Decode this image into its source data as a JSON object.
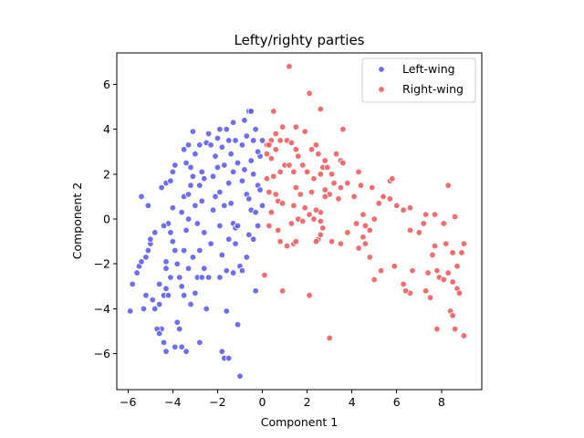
{
  "chart_data": {
    "type": "scatter",
    "title": "Lefty/righty parties",
    "xlabel": "Component 1",
    "ylabel": "Component 2",
    "xlim": [
      -6.5,
      9.8
    ],
    "ylim": [
      -7.6,
      7.4
    ],
    "xticks": [
      -6,
      -4,
      -2,
      0,
      2,
      4,
      6,
      8
    ],
    "yticks": [
      -6,
      -4,
      -2,
      0,
      2,
      4,
      6
    ],
    "xtick_labels": [
      "−6",
      "−4",
      "−2",
      "0",
      "2",
      "4",
      "6",
      "8"
    ],
    "ytick_labels": [
      "−6",
      "−4",
      "−2",
      "0",
      "2",
      "4",
      "6"
    ],
    "grid": false,
    "legend_position": "top-right",
    "series": [
      {
        "name": "Left-wing",
        "color": "#5555ee",
        "points": [
          [
            -5.9,
            -4.1
          ],
          [
            -5.8,
            -2.9
          ],
          [
            -5.6,
            -2.4
          ],
          [
            -5.5,
            -2.1
          ],
          [
            -5.4,
            -1.9
          ],
          [
            -5.2,
            -1.7
          ],
          [
            -5.1,
            -1.4
          ],
          [
            -5.0,
            -1.1
          ],
          [
            -5.3,
            -4.0
          ],
          [
            -5.2,
            -3.4
          ],
          [
            -5.4,
            1.0
          ],
          [
            -5.1,
            0.6
          ],
          [
            -5.0,
            -0.9
          ],
          [
            -4.8,
            -0.6
          ],
          [
            -4.9,
            -3.6
          ],
          [
            -4.6,
            -3.8
          ],
          [
            -4.5,
            -4.9
          ],
          [
            -4.7,
            -4.9
          ],
          [
            -4.4,
            -3.4
          ],
          [
            -4.2,
            -3.4
          ],
          [
            -4.3,
            -2.2
          ],
          [
            -4.1,
            -2.6
          ],
          [
            -4.3,
            -1.9
          ],
          [
            -4.1,
            -0.6
          ],
          [
            -4.2,
            -0.2
          ],
          [
            -4.0,
            0.5
          ],
          [
            -4.4,
            -0.3
          ],
          [
            -4.5,
            1.4
          ],
          [
            -4.3,
            1.6
          ],
          [
            -4.1,
            1.7
          ],
          [
            -4.0,
            2.1
          ],
          [
            -3.9,
            2.4
          ],
          [
            -4.0,
            -1.0
          ],
          [
            -3.9,
            -1.4
          ],
          [
            -3.8,
            -2.0
          ],
          [
            -4.6,
            -2.9
          ],
          [
            -4.3,
            -3.1
          ],
          [
            -4.4,
            -5.5
          ],
          [
            -4.3,
            -5.9
          ],
          [
            -3.9,
            -5.7
          ],
          [
            -3.6,
            -3.0
          ],
          [
            -3.7,
            -2.6
          ],
          [
            -3.8,
            -4.6
          ],
          [
            -3.6,
            -5.7
          ],
          [
            -3.4,
            -5.9
          ],
          [
            -3.7,
            -4.9
          ],
          [
            -3.5,
            -1.4
          ],
          [
            -3.4,
            -0.5
          ],
          [
            -3.3,
            0.0
          ],
          [
            -3.6,
            0.3
          ],
          [
            -3.5,
            1.0
          ],
          [
            -3.3,
            1.1
          ],
          [
            -3.2,
            1.5
          ],
          [
            -3.1,
            1.9
          ],
          [
            -3.4,
            2.5
          ],
          [
            -3.5,
            3.1
          ],
          [
            -3.3,
            3.3
          ],
          [
            -3.2,
            2.3
          ],
          [
            -3.1,
            3.9
          ],
          [
            -3.5,
            -3.4
          ],
          [
            -3.2,
            -3.8
          ],
          [
            -3.0,
            -3.3
          ],
          [
            -3.1,
            -1.7
          ],
          [
            -2.8,
            -1.4
          ],
          [
            -2.9,
            -0.2
          ],
          [
            -3.0,
            0.6
          ],
          [
            -2.8,
            1.5
          ],
          [
            -2.7,
            2.1
          ],
          [
            -2.8,
            3.3
          ],
          [
            -2.5,
            3.4
          ],
          [
            -2.4,
            3.8
          ],
          [
            -2.6,
            1.8
          ],
          [
            -2.7,
            0.8
          ],
          [
            -2.6,
            -0.6
          ],
          [
            -2.9,
            -2.6
          ],
          [
            -2.7,
            -2.6
          ],
          [
            -2.8,
            -5.5
          ],
          [
            -2.6,
            -2.2
          ],
          [
            -2.4,
            -2.6
          ],
          [
            -2.3,
            -1.1
          ],
          [
            -2.2,
            0.4
          ],
          [
            -2.1,
            1.0
          ],
          [
            -2.2,
            1.9
          ],
          [
            -2.0,
            2.3
          ],
          [
            -2.1,
            2.8
          ],
          [
            -2.3,
            3.3
          ],
          [
            -2.0,
            3.6
          ],
          [
            -1.9,
            4.0
          ],
          [
            -1.8,
            3.2
          ],
          [
            -1.7,
            2.4
          ],
          [
            -1.9,
            1.2
          ],
          [
            -1.7,
            0.6
          ],
          [
            -1.9,
            -0.3
          ],
          [
            -1.8,
            -1.6
          ],
          [
            -1.6,
            -2.3
          ],
          [
            -1.9,
            -2.6
          ],
          [
            -1.8,
            -5.9
          ],
          [
            -1.7,
            -6.2
          ],
          [
            -1.5,
            -6.2
          ],
          [
            -1.6,
            -4.1
          ],
          [
            -1.5,
            -0.9
          ],
          [
            -1.4,
            0.7
          ],
          [
            -1.5,
            1.6
          ],
          [
            -1.3,
            2.1
          ],
          [
            -1.4,
            2.9
          ],
          [
            -1.5,
            3.5
          ],
          [
            -1.6,
            4.0
          ],
          [
            -1.3,
            4.3
          ],
          [
            -1.2,
            3.5
          ],
          [
            -1.1,
            2.5
          ],
          [
            -1.3,
            -0.2
          ],
          [
            -1.2,
            -0.4
          ],
          [
            -1.1,
            -0.3
          ],
          [
            -1.0,
            -2.1
          ],
          [
            -1.2,
            -1.1
          ],
          [
            -1.1,
            -4.7
          ],
          [
            -1.0,
            -7.0
          ],
          [
            -1.3,
            -2.4
          ],
          [
            -0.9,
            1.7
          ],
          [
            -0.8,
            2.2
          ],
          [
            -0.9,
            3.3
          ],
          [
            -0.7,
            3.7
          ],
          [
            -0.8,
            4.4
          ],
          [
            -0.6,
            4.8
          ],
          [
            -0.7,
            1.1
          ],
          [
            -0.6,
            0.9
          ],
          [
            -0.5,
            0.4
          ],
          [
            -0.6,
            -0.7
          ],
          [
            -0.7,
            -1.7
          ],
          [
            -0.9,
            -2.3
          ],
          [
            -0.5,
            2.6
          ],
          [
            -0.4,
            3.5
          ],
          [
            -0.3,
            4.0
          ],
          [
            -0.5,
            4.8
          ],
          [
            -0.4,
            2.0
          ],
          [
            -0.2,
            1.5
          ],
          [
            -0.3,
            0.3
          ],
          [
            -0.2,
            -0.3
          ],
          [
            -0.4,
            -0.9
          ],
          [
            -0.3,
            -3.2
          ],
          [
            -0.1,
            2.8
          ],
          [
            0.0,
            3.5
          ],
          [
            -0.2,
            3.0
          ],
          [
            -0.1,
            1.3
          ],
          [
            0.0,
            0.6
          ],
          [
            -4.8,
            -4.0
          ],
          [
            -4.6,
            -5.1
          ],
          [
            -3.3,
            -2.2
          ],
          [
            -2.5,
            -4.0
          ],
          [
            -3.0,
            2.9
          ]
        ]
      },
      {
        "name": "Right-wing",
        "color": "#ee5555",
        "points": [
          [
            1.2,
            6.8
          ],
          [
            2.1,
            5.6
          ],
          [
            2.6,
            4.9
          ],
          [
            3.6,
            4.0
          ],
          [
            1.5,
            4.1
          ],
          [
            1.9,
            3.9
          ],
          [
            0.5,
            4.8
          ],
          [
            0.9,
            4.1
          ],
          [
            1.1,
            3.5
          ],
          [
            0.2,
            3.3
          ],
          [
            0.4,
            3.5
          ],
          [
            0.3,
            3.3
          ],
          [
            0.6,
            3.8
          ],
          [
            0.8,
            3.5
          ],
          [
            1.3,
            3.4
          ],
          [
            2.2,
            3.1
          ],
          [
            2.4,
            3.3
          ],
          [
            2.5,
            2.9
          ],
          [
            0.6,
            3.1
          ],
          [
            0.2,
            2.9
          ],
          [
            0.4,
            2.7
          ],
          [
            0.5,
            1.9
          ],
          [
            0.2,
            1.8
          ],
          [
            0.3,
            1.2
          ],
          [
            0.6,
            1.1
          ],
          [
            0.7,
            0.8
          ],
          [
            0.8,
            2.1
          ],
          [
            1.0,
            2.4
          ],
          [
            1.2,
            2.4
          ],
          [
            1.4,
            2.1
          ],
          [
            1.5,
            1.4
          ],
          [
            1.5,
            3.1
          ],
          [
            1.6,
            2.8
          ],
          [
            1.8,
            2.4
          ],
          [
            2.0,
            2.1
          ],
          [
            2.3,
            1.8
          ],
          [
            2.6,
            2.0
          ],
          [
            2.7,
            2.3
          ],
          [
            2.8,
            2.6
          ],
          [
            2.9,
            2.3
          ],
          [
            3.1,
            2.0
          ],
          [
            3.3,
            2.9
          ],
          [
            3.5,
            2.6
          ],
          [
            3.6,
            2.5
          ],
          [
            3.8,
            1.6
          ],
          [
            3.0,
            1.1
          ],
          [
            3.4,
            0.9
          ],
          [
            3.5,
            1.4
          ],
          [
            2.8,
            1.0
          ],
          [
            2.6,
            0.3
          ],
          [
            2.4,
            0.4
          ],
          [
            2.3,
            0.0
          ],
          [
            2.1,
            0.2
          ],
          [
            2.6,
            -0.1
          ],
          [
            2.7,
            -0.4
          ],
          [
            2.5,
            -0.9
          ],
          [
            2.4,
            -1.0
          ],
          [
            2.6,
            -0.7
          ],
          [
            3.1,
            -1.0
          ],
          [
            3.5,
            -1.1
          ],
          [
            3.8,
            -0.6
          ],
          [
            4.2,
            -0.2
          ],
          [
            4.5,
            0.2
          ],
          [
            4.4,
            1.5
          ],
          [
            4.3,
            2.1
          ],
          [
            4.9,
            1.4
          ],
          [
            5.2,
            0.7
          ],
          [
            5.4,
            1.0
          ],
          [
            5.7,
            1.7
          ],
          [
            5.8,
            1.8
          ],
          [
            5.7,
            0.9
          ],
          [
            6.0,
            0.6
          ],
          [
            6.6,
            0.5
          ],
          [
            6.6,
            -0.5
          ],
          [
            7.2,
            -0.2
          ],
          [
            7.3,
            0.2
          ],
          [
            7.7,
            0.2
          ],
          [
            8.1,
            -0.2
          ],
          [
            8.3,
            1.5
          ],
          [
            8.6,
            0.1
          ],
          [
            9.0,
            -1.1
          ],
          [
            8.9,
            -1.5
          ],
          [
            8.7,
            -2.1
          ],
          [
            8.5,
            -1.5
          ],
          [
            8.2,
            -1.1
          ],
          [
            7.7,
            -1.2
          ],
          [
            7.6,
            -1.6
          ],
          [
            7.4,
            -2.4
          ],
          [
            7.8,
            -2.3
          ],
          [
            7.9,
            -2.6
          ],
          [
            8.1,
            -2.7
          ],
          [
            8.3,
            -2.4
          ],
          [
            8.5,
            -2.8
          ],
          [
            8.7,
            -3.1
          ],
          [
            8.8,
            -3.3
          ],
          [
            8.4,
            -4.1
          ],
          [
            8.5,
            -4.3
          ],
          [
            9.0,
            -5.2
          ],
          [
            8.6,
            -4.9
          ],
          [
            7.8,
            -4.9
          ],
          [
            7.5,
            -3.5
          ],
          [
            7.3,
            -3.2
          ],
          [
            6.6,
            -3.3
          ],
          [
            6.4,
            -3.2
          ],
          [
            6.3,
            -2.9
          ],
          [
            6.7,
            -2.3
          ],
          [
            5.9,
            -2.1
          ],
          [
            5.3,
            -2.3
          ],
          [
            5.0,
            -2.7
          ],
          [
            4.8,
            -1.7
          ],
          [
            4.6,
            -1.1
          ],
          [
            4.3,
            -1.3
          ],
          [
            4.5,
            -0.8
          ],
          [
            4.8,
            -0.5
          ],
          [
            4.6,
            -0.3
          ],
          [
            3.0,
            -5.3
          ],
          [
            2.1,
            -3.4
          ],
          [
            0.9,
            -3.2
          ],
          [
            0.1,
            -2.5
          ],
          [
            0.8,
            -1.0
          ],
          [
            1.1,
            -1.2
          ],
          [
            1.4,
            -1.1
          ],
          [
            1.5,
            -1.0
          ],
          [
            0.7,
            -0.5
          ],
          [
            0.3,
            -0.3
          ],
          [
            1.3,
            -0.2
          ],
          [
            1.6,
            0.0
          ],
          [
            1.4,
            0.6
          ],
          [
            1.9,
            0.5
          ],
          [
            1.7,
            1.1
          ],
          [
            2.8,
            1.3
          ],
          [
            3.2,
            1.6
          ],
          [
            2.2,
            1.2
          ],
          [
            0.9,
            0.7
          ],
          [
            1.8,
            -0.1
          ],
          [
            0.4,
            0.3
          ],
          [
            5.0,
            0.0
          ],
          [
            6.3,
            0.4
          ],
          [
            7.0,
            -0.6
          ],
          [
            4.1,
            1.0
          ]
        ]
      }
    ]
  }
}
